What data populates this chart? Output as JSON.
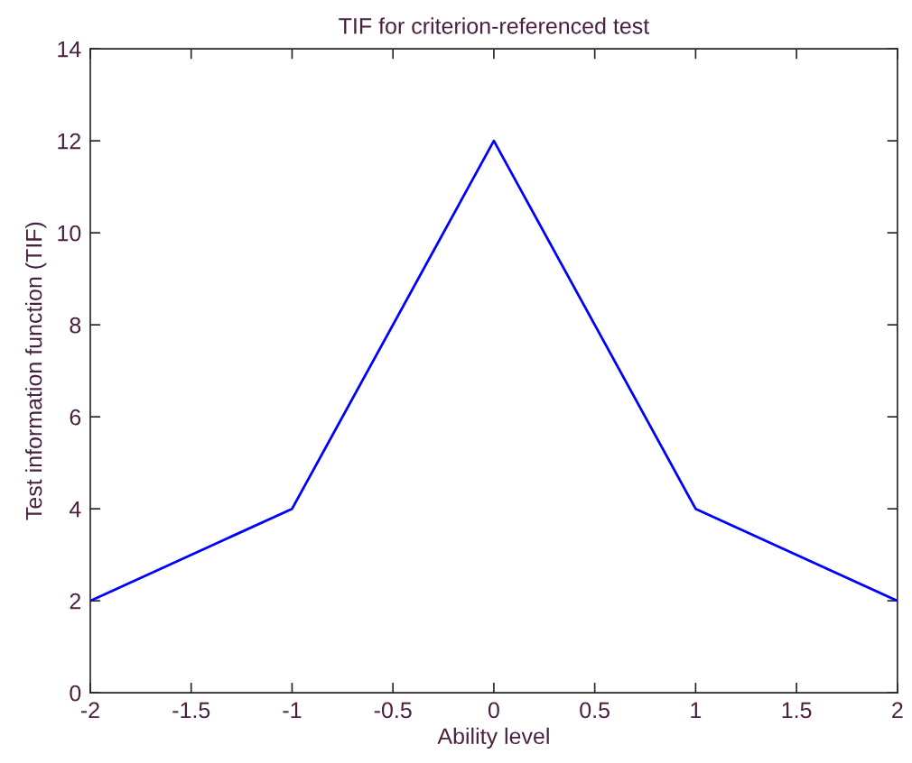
{
  "chart_data": {
    "type": "line",
    "title": "TIF for criterion-referenced test",
    "xlabel": "Ability level",
    "ylabel": "Test information function (TIF)",
    "x": [
      -2,
      -1,
      0,
      1,
      2
    ],
    "series": [
      {
        "color": "#0000ff",
        "values": [
          2,
          4,
          12,
          4,
          2
        ]
      }
    ],
    "xlim": [
      -2,
      2
    ],
    "ylim": [
      0,
      14
    ],
    "xticks": [
      -2,
      -1.5,
      -1,
      -0.5,
      0,
      0.5,
      1,
      1.5,
      2
    ],
    "yticks": [
      0,
      2,
      4,
      6,
      8,
      10,
      12,
      14
    ],
    "grid": false,
    "legend": false,
    "marker": "none",
    "line_style": "solid"
  }
}
